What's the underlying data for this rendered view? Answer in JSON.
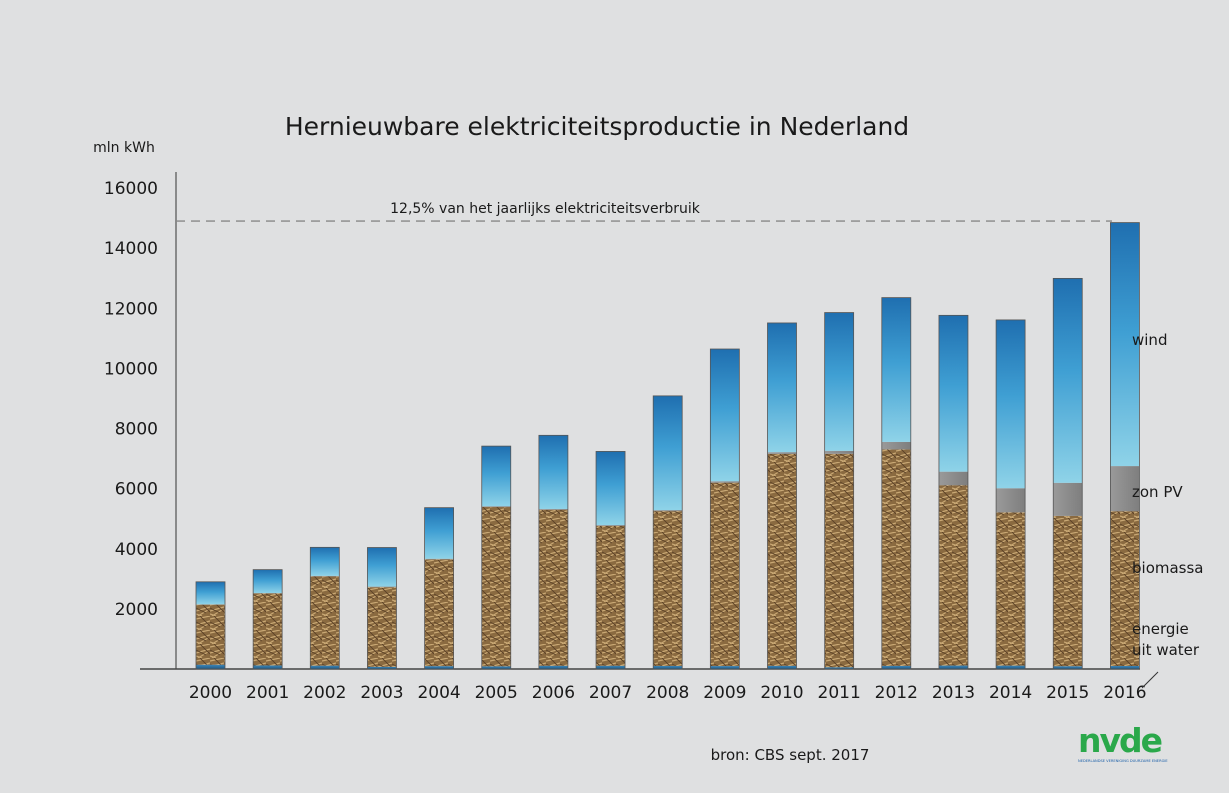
{
  "chart_data": {
    "type": "bar",
    "stacked": true,
    "title": "Hernieuwbare elektriciteitsproductie in Nederland",
    "ylabel": "mln kWh",
    "ylim": [
      0,
      16000
    ],
    "yticks": [
      2000,
      4000,
      6000,
      8000,
      10000,
      12000,
      14000,
      16000
    ],
    "categories": [
      "2000",
      "2001",
      "2002",
      "2003",
      "2004",
      "2005",
      "2006",
      "2007",
      "2008",
      "2009",
      "2010",
      "2011",
      "2012",
      "2013",
      "2014",
      "2015",
      "2016"
    ],
    "series": [
      {
        "name": "energie uit water",
        "color": "#2e6f9e",
        "values": [
          142,
          117,
          110,
          72,
          95,
          88,
          106,
          107,
          102,
          98,
          105,
          57,
          104,
          114,
          112,
          93,
          100
        ]
      },
      {
        "name": "biomassa",
        "color": "#9a7a4e",
        "values": [
          2000,
          2400,
          2970,
          2650,
          3550,
          5300,
          5190,
          4650,
          5150,
          6100,
          7050,
          7100,
          7200,
          6000,
          5100,
          5000,
          5150
        ]
      },
      {
        "name": "zon PV",
        "color": "#8c8c8c",
        "values": [
          8,
          8,
          17,
          19,
          22,
          26,
          27,
          30,
          33,
          46,
          56,
          100,
          250,
          450,
          800,
          1100,
          1500
        ]
      },
      {
        "name": "wind",
        "color": "#4da8d6",
        "values": [
          750,
          780,
          950,
          1300,
          1700,
          2000,
          2450,
          2450,
          3800,
          4400,
          4300,
          4600,
          4800,
          5200,
          5600,
          6800,
          8100
        ]
      }
    ],
    "reference_line": {
      "value": 14900,
      "label": "12,5% van het jaarlijks elektriciteitsverbruik"
    },
    "legend_placement": "right",
    "grid": false
  },
  "source": "bron: CBS sept. 2017",
  "logo": {
    "text": "nvde",
    "tagline": "NEDERLANDSE VERENIGING DUURZAME ENERGIE"
  }
}
